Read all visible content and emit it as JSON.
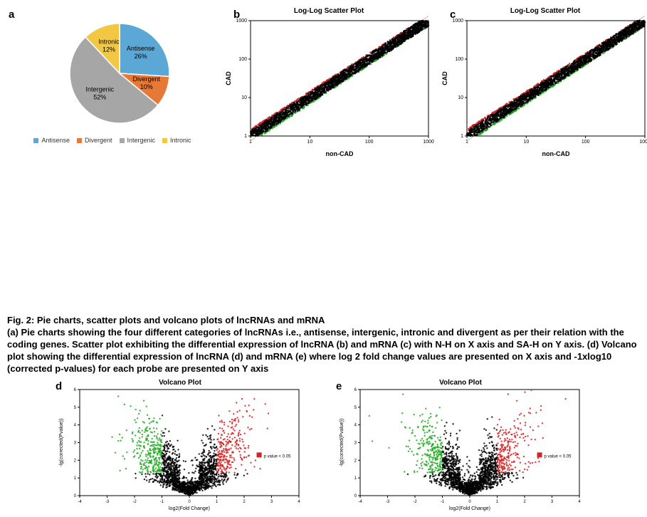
{
  "figure_label_title": "Fig. 2: Pie charts, scatter plots and volcano plots of  lncRNAs and mRNA",
  "figure_caption": "(a) Pie charts showing the four different categories of lncRNAs i.e., antisense, intergenic, intronic and divergent as per their relation with the coding genes. Scatter plot exhibiting the differential expression of lncRNA (b) and mRNA (c) with N-H on X axis and SA-H on Y axis. (d) Volcano plot showing the differential expression of lncRNA (d) and mRNA (e) where log 2 fold change values are presented on X axis and -1xlog10 (corrected p-values) for each probe are presented on Y axis",
  "panels": {
    "a": {
      "label": "a"
    },
    "b": {
      "label": "b",
      "title": "Log-Log Scatter Plot",
      "xlabel": "non-CAD",
      "ylabel": "CAD"
    },
    "c": {
      "label": "c",
      "title": "Log-Log Scatter Plot",
      "xlabel": "non-CAD",
      "ylabel": "CAD"
    },
    "d": {
      "label": "d",
      "title": "Volcano Plot",
      "xlabel": "log2(Fold Change)",
      "ylabel": "-lg(corrected(Pvalue))",
      "annot": "p value < 0.05"
    },
    "e": {
      "label": "e",
      "title": "Volcano Plot",
      "xlabel": "log2(Fold Change)",
      "ylabel": "-lg(corrected(Pvalue))",
      "annot": "p value < 0.05"
    }
  },
  "pie": {
    "type": "pie",
    "background_color": "#ffffff",
    "slices": [
      {
        "label": "Antisense",
        "percent": 26,
        "color": "#5ba7d6"
      },
      {
        "label": "Divergent",
        "percent": 10,
        "color": "#e67935"
      },
      {
        "label": "Intergenic",
        "percent": 52,
        "color": "#a6a6a6"
      },
      {
        "label": "Intronic",
        "percent": 12,
        "color": "#f2c744"
      }
    ],
    "label_fontsize": 9,
    "legend_position": "bottom"
  },
  "scatter_common": {
    "type": "scatter",
    "xscale": "log",
    "yscale": "log",
    "xlim": [
      1,
      1000
    ],
    "ylim": [
      1,
      1000
    ],
    "x_ticks": [
      1,
      10,
      100,
      1000
    ],
    "y_ticks": [
      1,
      10,
      100,
      1000
    ],
    "background_color": "#ffffff",
    "grid_color": "#000000",
    "label_fontsize": 9,
    "title_fontsize": 10,
    "seed_b": 11,
    "n_b": 2600,
    "seed_c": 29,
    "n_c": 2600,
    "colors": {
      "main": "#000000",
      "up": "#d62222",
      "down": "#22aa22"
    },
    "marker_size": 1.3
  },
  "volcano_common": {
    "type": "scatter",
    "xlim": [
      -4,
      4
    ],
    "ylim": [
      0,
      6
    ],
    "x_ticks": [
      -4,
      -3,
      -2,
      -1,
      0,
      1,
      2,
      3,
      4
    ],
    "y_ticks": [
      0,
      1,
      2,
      3,
      4,
      5,
      6
    ],
    "background_color": "#ffffff",
    "label_fontsize": 7,
    "title_fontsize": 10,
    "seed_d": 41,
    "n_d": 2400,
    "seed_e": 73,
    "n_e": 2400,
    "colors": {
      "main": "#000000",
      "up": "#d62222",
      "down": "#22aa22"
    },
    "sig_threshold_x": 1.0,
    "sig_threshold_y": 1.3,
    "marker_size": 1.2
  }
}
